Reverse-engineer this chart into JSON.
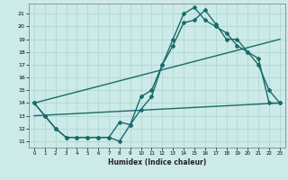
{
  "title": "",
  "xlabel": "Humidex (Indice chaleur)",
  "ylabel": "",
  "background_color": "#cceae7",
  "grid_color": "#aad4d0",
  "line_color": "#1a6b6b",
  "xlim": [
    -0.5,
    23.5
  ],
  "ylim": [
    10.5,
    21.8
  ],
  "yticks": [
    11,
    12,
    13,
    14,
    15,
    16,
    17,
    18,
    19,
    20,
    21
  ],
  "xticks": [
    0,
    1,
    2,
    3,
    4,
    5,
    6,
    7,
    8,
    9,
    10,
    11,
    12,
    13,
    14,
    15,
    16,
    17,
    18,
    19,
    20,
    21,
    22,
    23
  ],
  "series": [
    {
      "x": [
        0,
        1,
        2,
        3,
        4,
        5,
        6,
        7,
        8,
        9,
        10,
        11,
        12,
        13,
        14,
        15,
        16,
        17,
        18,
        19,
        20,
        21,
        22,
        23
      ],
      "y": [
        14,
        13,
        12,
        11.3,
        11.3,
        11.3,
        11.3,
        11.3,
        11.0,
        12.3,
        13.5,
        14.5,
        17.0,
        18.5,
        20.3,
        20.5,
        21.3,
        20.2,
        19.0,
        19.0,
        18.0,
        17.0,
        15.0,
        14.0
      ],
      "marker": "D",
      "markersize": 2.0,
      "linewidth": 1.0
    },
    {
      "x": [
        0,
        1,
        2,
        3,
        4,
        5,
        6,
        7,
        8,
        9,
        10,
        11,
        12,
        13,
        14,
        15,
        16,
        17,
        18,
        19,
        20,
        21,
        22,
        23
      ],
      "y": [
        14,
        13,
        12,
        11.3,
        11.3,
        11.3,
        11.3,
        11.3,
        12.5,
        12.3,
        14.5,
        15.0,
        17.0,
        19.0,
        21.0,
        21.5,
        20.5,
        20.0,
        19.5,
        18.5,
        18.0,
        17.5,
        14.0,
        14.0
      ],
      "marker": "D",
      "markersize": 2.0,
      "linewidth": 1.0
    },
    {
      "x": [
        0,
        23
      ],
      "y": [
        14,
        19.0
      ],
      "marker": null,
      "markersize": 0,
      "linewidth": 1.0
    },
    {
      "x": [
        0,
        23
      ],
      "y": [
        13,
        14.0
      ],
      "marker": null,
      "markersize": 0,
      "linewidth": 1.0
    }
  ]
}
